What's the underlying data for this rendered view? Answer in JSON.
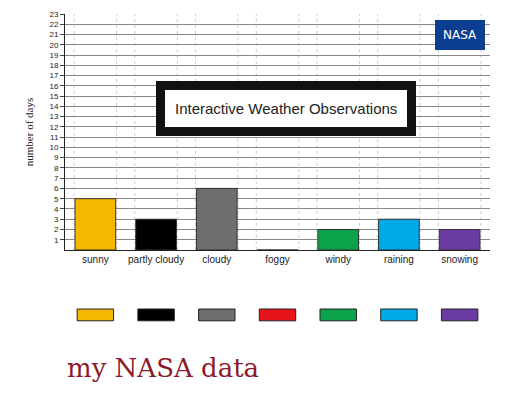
{
  "chart_data": {
    "type": "bar",
    "y_label": "number of days",
    "categories": [
      "sunny",
      "partly cloudy",
      "cloudy",
      "foggy",
      "windy",
      "raining",
      "snowing"
    ],
    "values": [
      5,
      3,
      6,
      0,
      2,
      3,
      2
    ],
    "colors": [
      "#f5b800",
      "#000000",
      "#6e6e6e",
      "#e8141b",
      "#0ca24a",
      "#00a9e8",
      "#6a3ba0"
    ],
    "ylim": [
      0,
      23
    ],
    "yticks": [
      1,
      2,
      3,
      4,
      5,
      6,
      7,
      8,
      9,
      10,
      11,
      12,
      13,
      14,
      15,
      16,
      17,
      18,
      19,
      20,
      21,
      22,
      23
    ],
    "grid": true,
    "annotations": [
      "Interactive Weather Observations",
      "NASA",
      "my NASA data"
    ]
  }
}
